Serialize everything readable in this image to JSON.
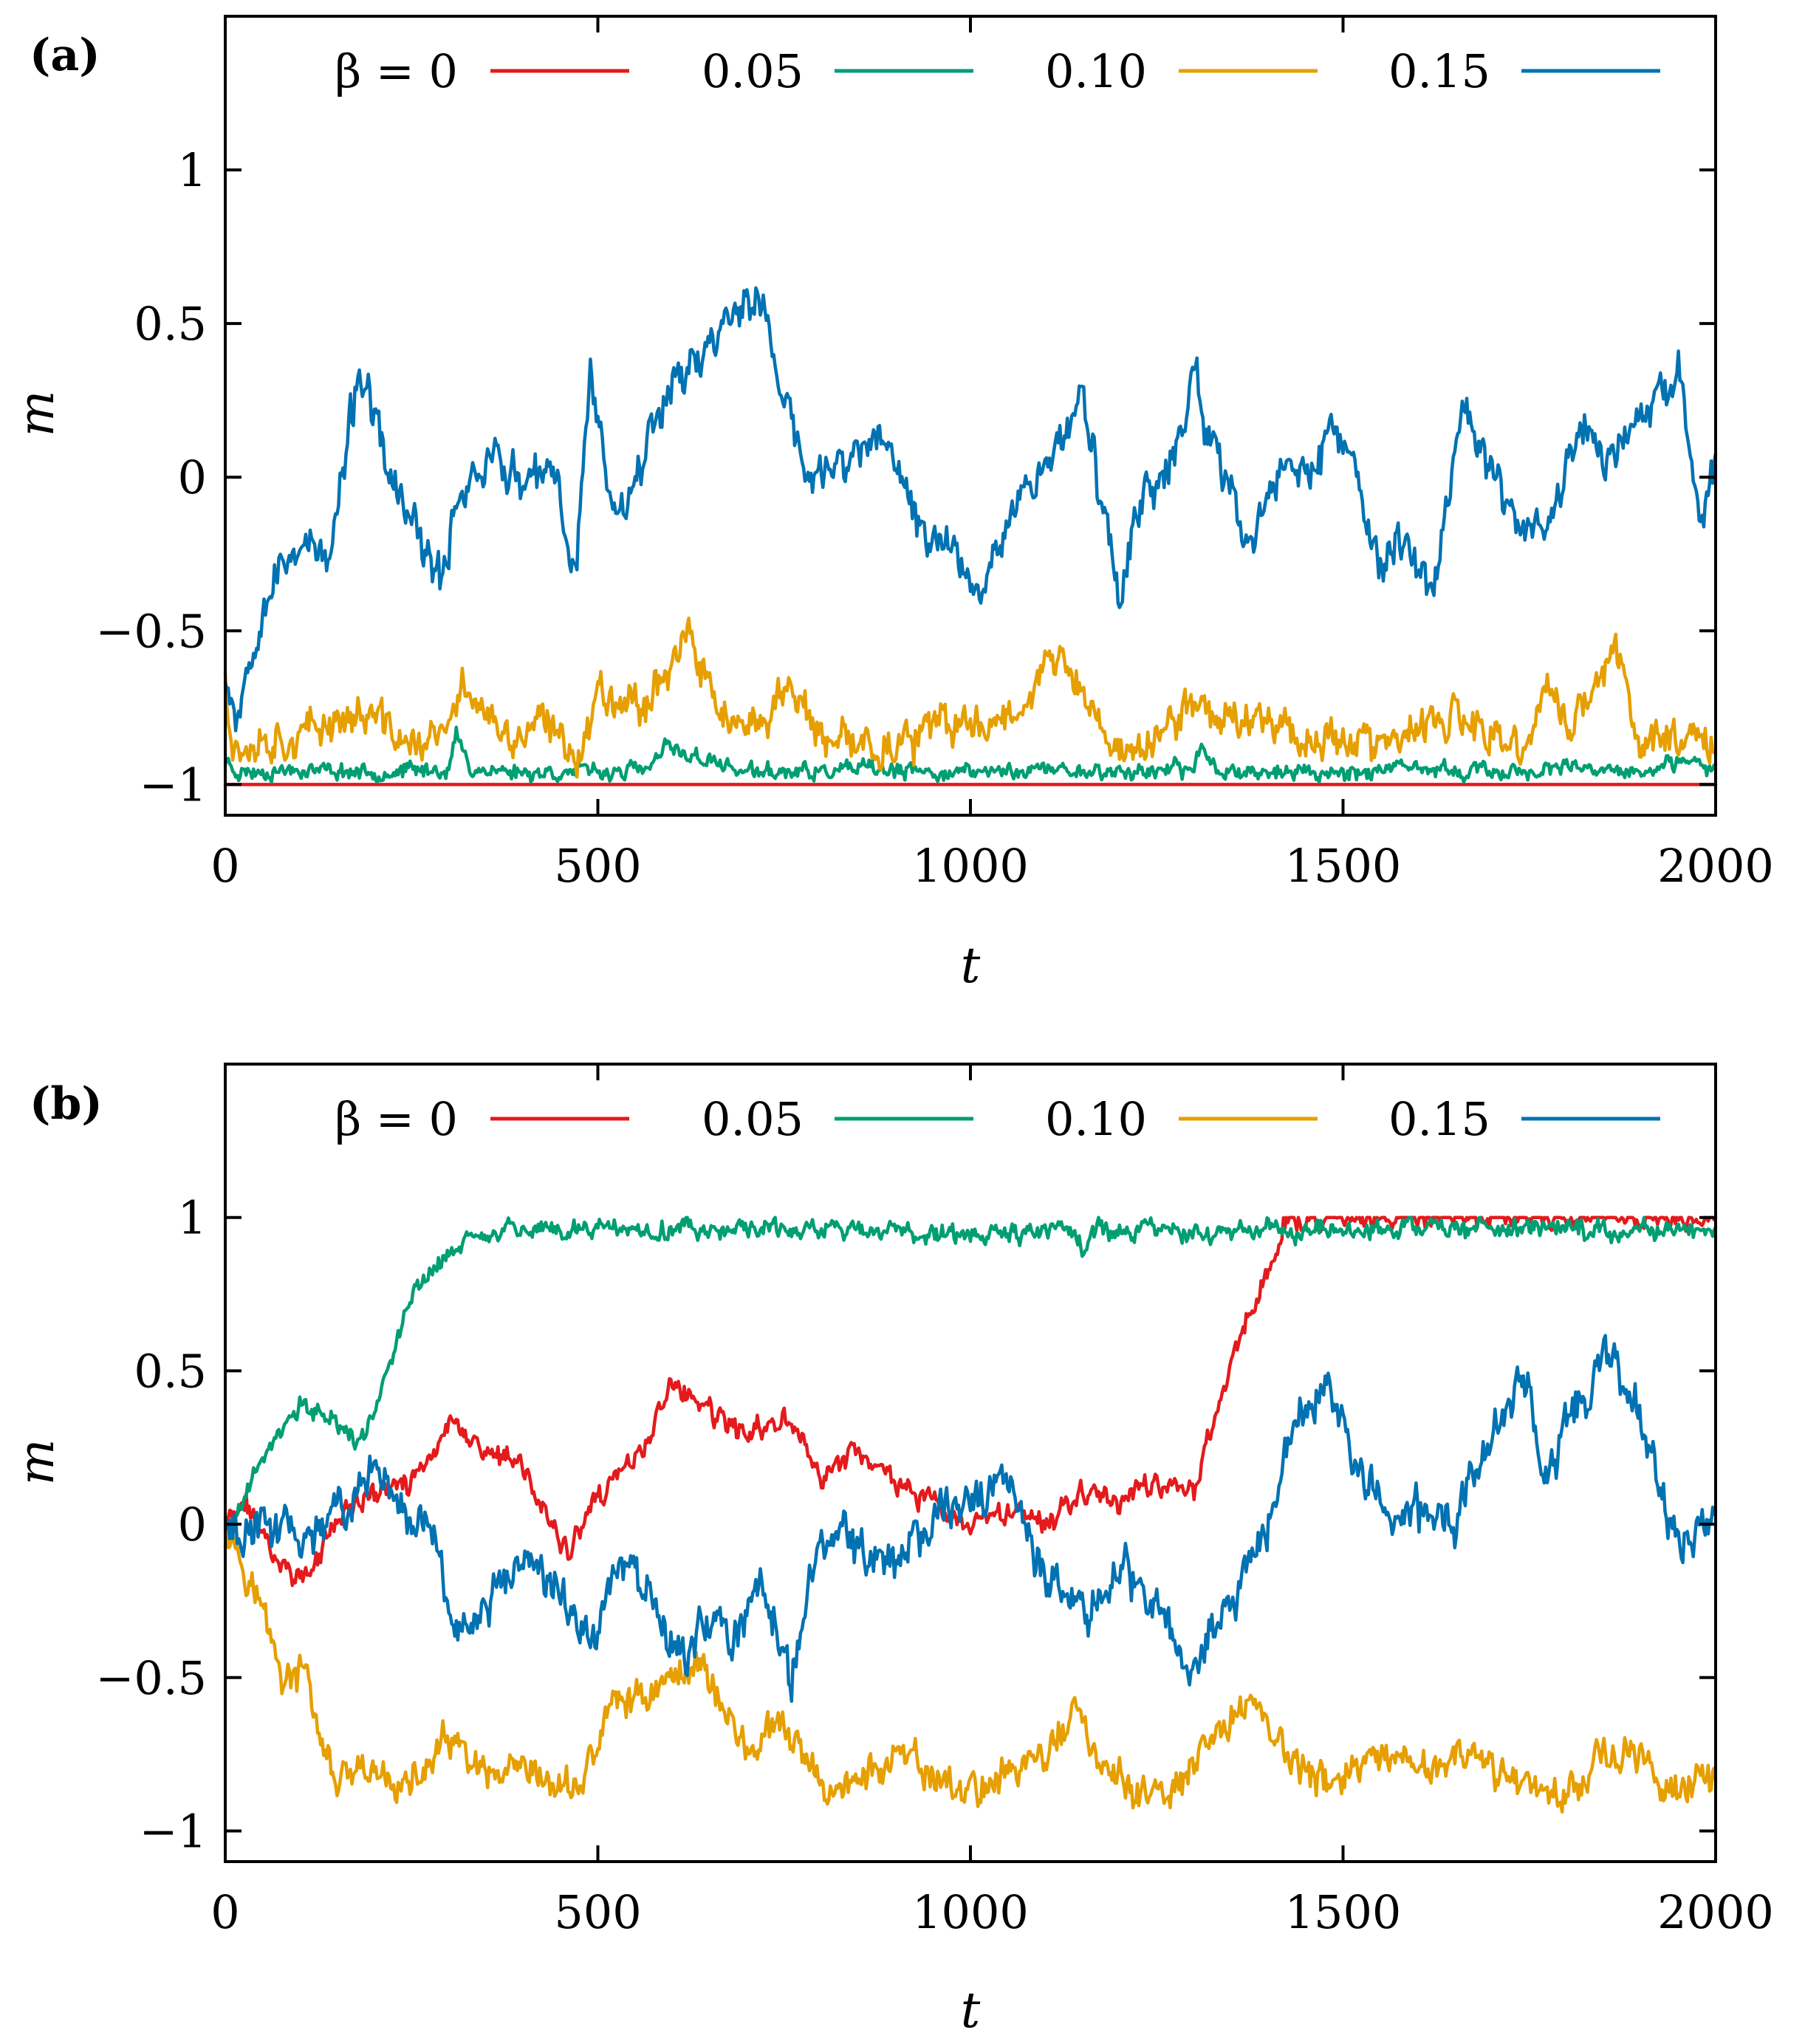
{
  "chart_data": [
    {
      "type": "line",
      "panel_label": "(a)",
      "xlabel": "t",
      "ylabel": "m",
      "xlim": [
        0,
        2000
      ],
      "ylim": [
        -1.1,
        1.5
      ],
      "xticks": [
        0,
        500,
        1000,
        1500,
        2000
      ],
      "xtick_labels": [
        "0",
        "500",
        "1000",
        "1500",
        "2000"
      ],
      "yticks": [
        -1,
        -0.5,
        0,
        0.5,
        1
      ],
      "ytick_labels": [
        "−1",
        "−0.5",
        "0",
        "0.5",
        "1"
      ],
      "grid": false,
      "legend_position": "top",
      "legend_prefix": "β = ",
      "series": [
        {
          "name": "0",
          "color": "#e41a1c",
          "seed": 11,
          "noise": 0,
          "clip": [
            -1,
            1
          ],
          "x": [
            0,
            2000
          ],
          "y": [
            -1.0,
            -1.0
          ]
        },
        {
          "name": "0.05",
          "color": "#009e73",
          "seed": 23,
          "noise": 0.02,
          "clip": [
            -1,
            1
          ],
          "x": [
            0,
            20,
            100,
            200,
            300,
            310,
            330,
            400,
            500,
            570,
            590,
            700,
            800,
            860,
            900,
            1000,
            1100,
            1200,
            1300,
            1310,
            1330,
            1400,
            1500,
            1600,
            1700,
            1800,
            1900,
            1960,
            2000
          ],
          "y": [
            -0.92,
            -0.96,
            -0.95,
            -0.96,
            -0.95,
            -0.84,
            -0.95,
            -0.96,
            -0.96,
            -0.95,
            -0.88,
            -0.96,
            -0.96,
            -0.95,
            -0.96,
            -0.96,
            -0.95,
            -0.96,
            -0.95,
            -0.87,
            -0.95,
            -0.96,
            -0.96,
            -0.95,
            -0.96,
            -0.95,
            -0.96,
            -0.93,
            -0.95
          ]
        },
        {
          "name": "0.10",
          "color": "#e69f00",
          "seed": 37,
          "noise": 0.05,
          "clip": [
            -1,
            1
          ],
          "x": [
            0,
            10,
            50,
            100,
            150,
            200,
            250,
            300,
            320,
            380,
            420,
            480,
            500,
            560,
            620,
            650,
            700,
            760,
            800,
            850,
            900,
            950,
            1000,
            1050,
            1100,
            1130,
            1150,
            1200,
            1250,
            1300,
            1350,
            1400,
            1450,
            1500,
            1550,
            1600,
            1650,
            1700,
            1750,
            1770,
            1800,
            1850,
            1870,
            1900,
            1950,
            2000
          ],
          "y": [
            -0.62,
            -0.88,
            -0.85,
            -0.85,
            -0.78,
            -0.78,
            -0.88,
            -0.83,
            -0.66,
            -0.88,
            -0.8,
            -0.9,
            -0.68,
            -0.74,
            -0.52,
            -0.7,
            -0.86,
            -0.66,
            -0.88,
            -0.86,
            -0.88,
            -0.82,
            -0.8,
            -0.78,
            -0.62,
            -0.6,
            -0.72,
            -0.9,
            -0.86,
            -0.72,
            -0.8,
            -0.76,
            -0.86,
            -0.84,
            -0.88,
            -0.83,
            -0.78,
            -0.86,
            -0.88,
            -0.66,
            -0.82,
            -0.64,
            -0.57,
            -0.88,
            -0.82,
            -0.86
          ]
        },
        {
          "name": "0.15",
          "color": "#0072b2",
          "seed": 53,
          "noise": 0.055,
          "clip": [
            -1,
            1
          ],
          "x": [
            0,
            15,
            50,
            100,
            140,
            180,
            220,
            260,
            290,
            310,
            360,
            400,
            440,
            470,
            490,
            520,
            560,
            600,
            640,
            680,
            720,
            750,
            780,
            820,
            860,
            900,
            930,
            980,
            1010,
            1050,
            1100,
            1150,
            1200,
            1220,
            1260,
            1300,
            1340,
            1380,
            1420,
            1460,
            1500,
            1550,
            1580,
            1620,
            1660,
            1700,
            1740,
            1780,
            1820,
            1860,
            1900,
            1950,
            1980,
            2000
          ],
          "y": [
            -0.62,
            -0.78,
            -0.4,
            -0.2,
            -0.28,
            0.36,
            0.0,
            -0.2,
            -0.36,
            -0.06,
            0.08,
            -0.04,
            0.02,
            -0.32,
            0.36,
            -0.12,
            0.06,
            0.34,
            0.38,
            0.56,
            0.56,
            0.26,
            0.0,
            0.02,
            0.12,
            0.06,
            -0.16,
            -0.24,
            -0.36,
            -0.12,
            0.04,
            0.26,
            -0.4,
            -0.08,
            -0.04,
            0.34,
            -0.04,
            -0.22,
            0.06,
            0.02,
            0.16,
            -0.32,
            -0.18,
            -0.38,
            0.24,
            -0.02,
            -0.16,
            -0.14,
            0.18,
            0.04,
            0.2,
            0.3,
            -0.1,
            0.06
          ]
        }
      ]
    },
    {
      "type": "line",
      "panel_label": "(b)",
      "xlabel": "t",
      "ylabel": "m",
      "xlim": [
        0,
        2000
      ],
      "ylim": [
        -1.1,
        1.5
      ],
      "xticks": [
        0,
        500,
        1000,
        1500,
        2000
      ],
      "xtick_labels": [
        "0",
        "500",
        "1000",
        "1500",
        "2000"
      ],
      "yticks": [
        -1,
        -0.5,
        0,
        0.5,
        1
      ],
      "ytick_labels": [
        "−1",
        "−0.5",
        "0",
        "0.5",
        "1"
      ],
      "grid": false,
      "legend_position": "top",
      "legend_prefix": "β = ",
      "series": [
        {
          "name": "0",
          "color": "#e41a1c",
          "seed": 71,
          "noise": 0.03,
          "clip": [
            -1,
            1
          ],
          "x": [
            0,
            30,
            70,
            110,
            150,
            200,
            250,
            300,
            350,
            400,
            460,
            500,
            560,
            600,
            640,
            700,
            750,
            800,
            850,
            900,
            950,
            1000,
            1050,
            1100,
            1150,
            1200,
            1250,
            1300,
            1330,
            1360,
            1400,
            1418,
            1420,
            1600,
            1800,
            2000
          ],
          "y": [
            0.0,
            0.06,
            -0.12,
            -0.18,
            0.02,
            0.1,
            0.14,
            0.32,
            0.24,
            0.18,
            -0.1,
            0.08,
            0.24,
            0.46,
            0.38,
            0.28,
            0.36,
            0.16,
            0.24,
            0.14,
            0.06,
            -0.02,
            0.04,
            0.0,
            0.12,
            0.08,
            0.14,
            0.12,
            0.36,
            0.6,
            0.82,
            0.98,
            1.0,
            1.0,
            1.0,
            1.0
          ]
        },
        {
          "name": "0.05",
          "color": "#009e73",
          "seed": 89,
          "noise": 0.025,
          "clip": [
            -1,
            1
          ],
          "x": [
            0,
            30,
            60,
            100,
            140,
            180,
            210,
            250,
            280,
            320,
            360,
            400,
            600,
            800,
            1000,
            1140,
            1150,
            1170,
            1400,
            1600,
            1800,
            1950,
            2000
          ],
          "y": [
            -0.06,
            0.12,
            0.26,
            0.38,
            0.36,
            0.26,
            0.44,
            0.74,
            0.84,
            0.92,
            0.96,
            0.96,
            0.96,
            0.96,
            0.95,
            0.95,
            0.88,
            0.96,
            0.96,
            0.96,
            0.96,
            0.96,
            0.96
          ]
        },
        {
          "name": "0.10",
          "color": "#e69f00",
          "seed": 97,
          "noise": 0.045,
          "clip": [
            -1,
            1
          ],
          "x": [
            0,
            20,
            50,
            80,
            110,
            130,
            150,
            200,
            250,
            300,
            350,
            400,
            450,
            480,
            520,
            560,
            600,
            640,
            660,
            700,
            750,
            800,
            850,
            900,
            950,
            1000,
            1050,
            1100,
            1140,
            1180,
            1220,
            1260,
            1300,
            1340,
            1380,
            1420,
            1460,
            1500,
            1550,
            1600,
            1650,
            1700,
            1750,
            1800,
            1850,
            1900,
            1950,
            2000
          ],
          "y": [
            0.02,
            -0.1,
            -0.28,
            -0.52,
            -0.48,
            -0.74,
            -0.84,
            -0.82,
            -0.86,
            -0.7,
            -0.84,
            -0.82,
            -0.86,
            -0.84,
            -0.58,
            -0.56,
            -0.5,
            -0.44,
            -0.56,
            -0.74,
            -0.66,
            -0.86,
            -0.84,
            -0.76,
            -0.82,
            -0.88,
            -0.8,
            -0.76,
            -0.6,
            -0.82,
            -0.86,
            -0.9,
            -0.8,
            -0.66,
            -0.56,
            -0.74,
            -0.84,
            -0.82,
            -0.78,
            -0.8,
            -0.76,
            -0.8,
            -0.84,
            -0.88,
            -0.74,
            -0.78,
            -0.86,
            -0.84
          ]
        },
        {
          "name": "0.15",
          "color": "#0072b2",
          "seed": 113,
          "noise": 0.055,
          "clip": [
            -1,
            1
          ],
          "x": [
            0,
            30,
            70,
            120,
            160,
            200,
            240,
            280,
            300,
            330,
            360,
            400,
            450,
            490,
            530,
            570,
            610,
            640,
            680,
            720,
            760,
            800,
            850,
            900,
            950,
            1000,
            1050,
            1080,
            1120,
            1160,
            1200,
            1250,
            1290,
            1320,
            1360,
            1400,
            1440,
            1480,
            1520,
            1560,
            1600,
            1650,
            1700,
            1740,
            1770,
            1800,
            1830,
            1850,
            1880,
            1920,
            1950,
            1980,
            2000
          ],
          "y": [
            0.04,
            -0.06,
            0.02,
            -0.04,
            0.08,
            0.16,
            0.06,
            -0.02,
            -0.3,
            -0.36,
            -0.24,
            -0.1,
            -0.22,
            -0.4,
            -0.08,
            -0.24,
            -0.46,
            -0.3,
            -0.38,
            -0.22,
            -0.5,
            -0.02,
            -0.08,
            -0.14,
            0.04,
            0.06,
            0.18,
            -0.1,
            -0.22,
            -0.3,
            -0.12,
            -0.3,
            -0.46,
            -0.36,
            -0.2,
            0.02,
            0.34,
            0.46,
            0.18,
            0.06,
            0.04,
            0.02,
            0.28,
            0.48,
            0.18,
            0.34,
            0.46,
            0.58,
            0.46,
            0.18,
            -0.1,
            0.02,
            0.04
          ]
        }
      ]
    }
  ]
}
